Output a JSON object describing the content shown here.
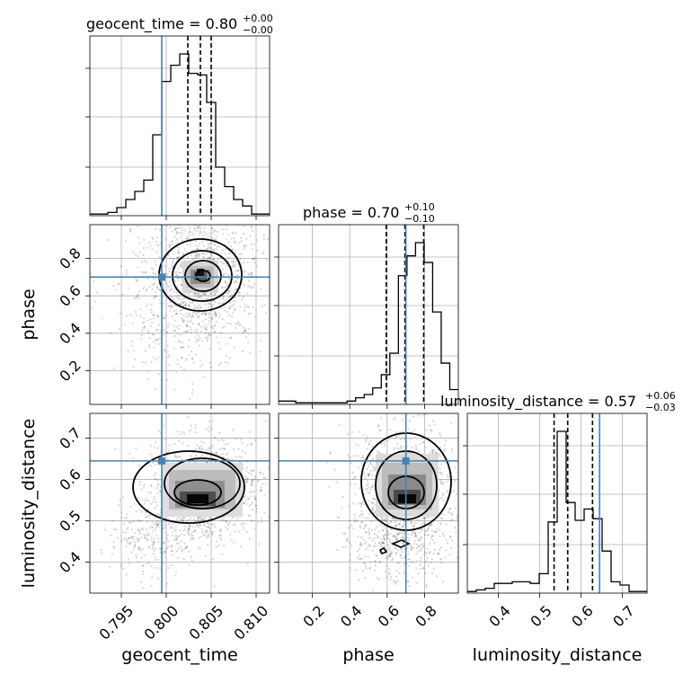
{
  "chart_data": {
    "type": "corner",
    "parameters": [
      "geocent_time",
      "phase",
      "luminosity_distance"
    ],
    "truth_color": "#4682b4",
    "truths": {
      "geocent_time": 0.7995,
      "phase": 0.7,
      "luminosity_distance": 0.645
    },
    "ranges": {
      "geocent_time": [
        0.7915,
        0.8115
      ],
      "phase": [
        0.02,
        0.98
      ],
      "luminosity_distance": [
        0.325,
        0.76
      ]
    },
    "ticks": {
      "geocent_time": {
        "values": [
          0.795,
          0.8,
          0.805,
          0.81
        ],
        "labels": [
          "0.795",
          "0.800",
          "0.805",
          "0.810"
        ]
      },
      "phase": {
        "values": [
          0.2,
          0.4,
          0.6,
          0.8
        ],
        "labels": [
          "0.2",
          "0.4",
          "0.6",
          "0.8"
        ]
      },
      "luminosity_distance": {
        "values": [
          0.4,
          0.5,
          0.6,
          0.7
        ],
        "labels": [
          "0.4",
          "0.5",
          "0.6",
          "0.7"
        ]
      }
    },
    "titles": [
      {
        "param": "geocent_time",
        "text": "geocent_time = 0.80",
        "plus": "+0.00",
        "minus": "−0.00"
      },
      {
        "param": "phase",
        "text": "phase = 0.70",
        "plus": "+0.10",
        "minus": "−0.10"
      },
      {
        "param": "luminosity_distance",
        "text": "luminosity_distance = 0.57",
        "plus": "+0.06",
        "minus": "−0.03"
      }
    ],
    "quantiles": {
      "geocent_time": [
        0.8024,
        0.8038,
        0.805
      ],
      "phase": [
        0.595,
        0.695,
        0.795
      ],
      "luminosity_distance": [
        0.535,
        0.568,
        0.628
      ]
    },
    "histograms": {
      "geocent_time": [
        1,
        1,
        2,
        5,
        10,
        15,
        22,
        50,
        83,
        93,
        100,
        88,
        87,
        70,
        30,
        18,
        10,
        6,
        1,
        1
      ],
      "phase": [
        2,
        2,
        1,
        1,
        1,
        1,
        1,
        1,
        2,
        4,
        6,
        10,
        18,
        31,
        78,
        90,
        98,
        86,
        56,
        25,
        9
      ],
      "luminosity_distance": [
        1,
        2,
        3,
        6,
        6,
        7,
        7,
        6,
        12,
        44,
        100,
        56,
        45,
        52,
        46,
        26,
        7,
        5,
        1,
        1
      ]
    },
    "density_peaks": {
      "geocent_time_phase": {
        "x": 0.804,
        "y": 0.72
      },
      "geocent_time_luminosity_distance": {
        "x": 0.8035,
        "y": 0.556
      },
      "phase_luminosity_distance": {
        "x": 0.715,
        "y": 0.556
      }
    }
  }
}
